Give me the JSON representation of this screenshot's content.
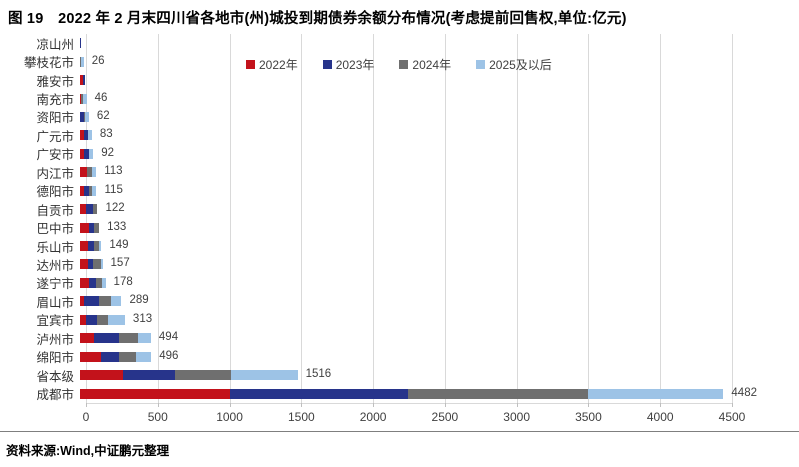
{
  "title": "图 19　2022 年 2 月末四川省各地市(州)城投到期债券余额分布情况(考虑提前回售权,单位:亿元)",
  "source": "资料来源:Wind,中证鹏元整理",
  "chart_data": {
    "type": "bar",
    "orientation": "horizontal",
    "stacked": true,
    "unit": "亿元",
    "title": "2022 年 2 月末四川省各地市(州)城投到期债券余额分布情况(考虑提前回售权)",
    "xlim": [
      0,
      4500
    ],
    "x_ticks": [
      0,
      500,
      1000,
      1500,
      2000,
      2500,
      3000,
      3500,
      4000,
      4500
    ],
    "grid": true,
    "legend_position": "top",
    "series_names": [
      "2022年",
      "2023年",
      "2024年",
      "2025及以后"
    ],
    "series_colors": [
      "#c3121b",
      "#27348b",
      "#6f6f6f",
      "#9dc3e6"
    ],
    "categories": [
      "凉山州",
      "攀枝花市",
      "雅安市",
      "南充市",
      "资阳市",
      "广元市",
      "广安市",
      "内江市",
      "德阳市",
      "自贡市",
      "巴中市",
      "乐山市",
      "达州市",
      "遂宁市",
      "眉山市",
      "宜宾市",
      "泸州市",
      "绵阳市",
      "省本级",
      "成都市"
    ],
    "rows": [
      {
        "category": "凉山州",
        "values": [
          0,
          5,
          0,
          0
        ],
        "total": null,
        "total_label": ""
      },
      {
        "category": "攀枝花市",
        "values": [
          0,
          0,
          7,
          19
        ],
        "total": 26,
        "total_label": "26"
      },
      {
        "category": "雅安市",
        "values": [
          24,
          8,
          0,
          0
        ],
        "total": null,
        "total_label": ""
      },
      {
        "category": "南充市",
        "values": [
          10,
          0,
          10,
          26
        ],
        "total": 46,
        "total_label": "46"
      },
      {
        "category": "资阳市",
        "values": [
          0,
          27,
          8,
          27
        ],
        "total": 62,
        "total_label": "62"
      },
      {
        "category": "广元市",
        "values": [
          29,
          29,
          0,
          25
        ],
        "total": 83,
        "total_label": "83"
      },
      {
        "category": "广安市",
        "values": [
          31,
          34,
          0,
          27
        ],
        "total": 92,
        "total_label": "92"
      },
      {
        "category": "内江市",
        "values": [
          48,
          0,
          38,
          27
        ],
        "total": 113,
        "total_label": "113"
      },
      {
        "category": "德阳市",
        "values": [
          31,
          32,
          22,
          30
        ],
        "total": 115,
        "total_label": "115"
      },
      {
        "category": "自贡市",
        "values": [
          41,
          51,
          30,
          0
        ],
        "total": 122,
        "total_label": "122"
      },
      {
        "category": "巴中市",
        "values": [
          61,
          36,
          36,
          0
        ],
        "total": 133,
        "total_label": "133"
      },
      {
        "category": "乐山市",
        "values": [
          55,
          42,
          35,
          17
        ],
        "total": 149,
        "total_label": "149"
      },
      {
        "category": "达州市",
        "values": [
          58,
          35,
          51,
          13
        ],
        "total": 157,
        "total_label": "157"
      },
      {
        "category": "遂宁市",
        "values": [
          61,
          49,
          41,
          27
        ],
        "total": 178,
        "total_label": "178"
      },
      {
        "category": "眉山市",
        "values": [
          25,
          107,
          87,
          70
        ],
        "total": 289,
        "total_label": "289"
      },
      {
        "category": "宜宾市",
        "values": [
          44,
          75,
          78,
          116
        ],
        "total": 313,
        "total_label": "313"
      },
      {
        "category": "泸州市",
        "values": [
          95,
          175,
          133,
          91
        ],
        "total": 494,
        "total_label": "494"
      },
      {
        "category": "绵阳市",
        "values": [
          143,
          126,
          122,
          105
        ],
        "total": 496,
        "total_label": "496"
      },
      {
        "category": "省本级",
        "values": [
          300,
          360,
          395,
          461
        ],
        "total": 1516,
        "total_label": "1516"
      },
      {
        "category": "成都市",
        "values": [
          1047,
          1237,
          1256,
          942
        ],
        "total": 4482,
        "total_label": "4482"
      }
    ],
    "colors": {
      "gridline": "#d9d9d9",
      "axis_text": "#404040",
      "value_text": "#404040",
      "category_text": "#333333"
    }
  }
}
